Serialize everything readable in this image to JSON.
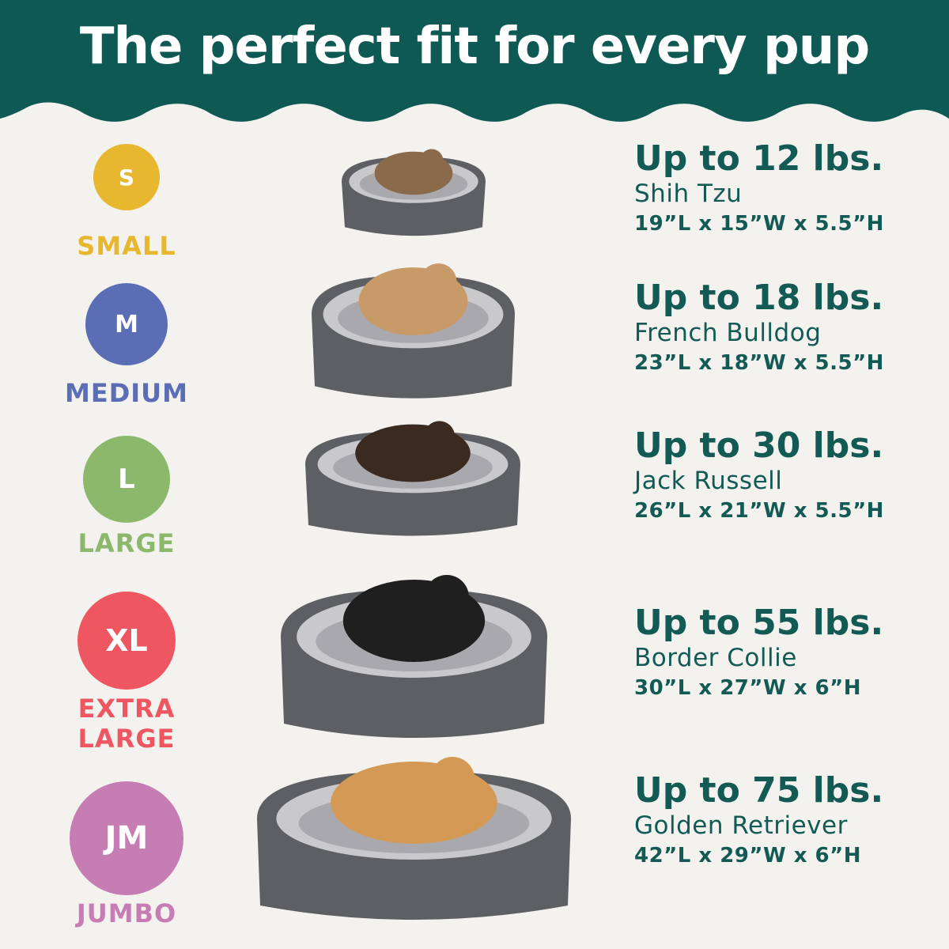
{
  "header": {
    "title": "The perfect fit for every pup",
    "color": "#0f5954"
  },
  "sizes": [
    {
      "code": "S",
      "label": "SMALL",
      "color": "#e7b72f",
      "weight": "Up to 12 lbs.",
      "breed": "Shih Tzu",
      "dims": "19”L x 15”W x 5.5”H"
    },
    {
      "code": "M",
      "label": "MEDIUM",
      "color": "#5b6db5",
      "weight": "Up to 18 lbs.",
      "breed": "French Bulldog",
      "dims": "23”L x 18”W x 5.5”H"
    },
    {
      "code": "L",
      "label": "LARGE",
      "color": "#8bb86b",
      "weight": "Up to 30 lbs.",
      "breed": "Jack Russell",
      "dims": "26”L x 21”W x 5.5”H"
    },
    {
      "code": "XL",
      "label": "EXTRA LARGE",
      "color": "#ee5661",
      "weight": "Up to 55 lbs.",
      "breed": "Border Collie",
      "dims": "30”L x 27”W x 6”H"
    },
    {
      "code": "JM",
      "label": "JUMBO",
      "color": "#c67db3",
      "weight": "Up to 75 lbs.",
      "breed": "Golden Retriever",
      "dims": "42”L x 29”W x 6”H"
    }
  ]
}
